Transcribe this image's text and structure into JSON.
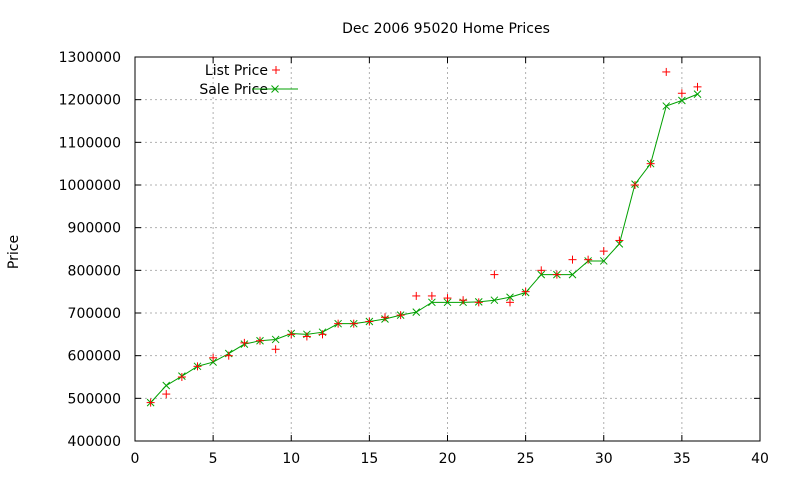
{
  "chart_data": {
    "type": "line",
    "title": "Dec 2006 95020 Home Prices",
    "xlabel": "",
    "ylabel": "Price",
    "xlim": [
      0,
      40
    ],
    "ylim": [
      400000,
      1300000
    ],
    "x_ticks": [
      0,
      5,
      10,
      15,
      20,
      25,
      30,
      35,
      40
    ],
    "y_ticks": [
      400000,
      500000,
      600000,
      700000,
      800000,
      900000,
      1000000,
      1100000,
      1200000,
      1300000
    ],
    "grid": true,
    "legend_position": "top-left",
    "x": [
      1,
      2,
      3,
      4,
      5,
      6,
      7,
      8,
      9,
      10,
      11,
      12,
      13,
      14,
      15,
      16,
      17,
      18,
      19,
      20,
      21,
      22,
      23,
      24,
      25,
      26,
      27,
      28,
      29,
      30,
      31,
      32,
      33,
      34,
      35,
      36
    ],
    "series": [
      {
        "name": "List Price",
        "style": "points",
        "color": "#ff0000",
        "values": [
          490000,
          510000,
          550000,
          575000,
          595000,
          600000,
          630000,
          635000,
          615000,
          650000,
          645000,
          650000,
          675000,
          675000,
          680000,
          690000,
          695000,
          740000,
          740000,
          735000,
          730000,
          725000,
          790000,
          725000,
          750000,
          800000,
          790000,
          825000,
          825000,
          845000,
          870000,
          1000000,
          1050000,
          1265000,
          1215000,
          1230000
        ]
      },
      {
        "name": "Sale Price",
        "style": "linespoints",
        "color": "#00a000",
        "values": [
          490000,
          530000,
          552000,
          575000,
          585000,
          605000,
          627000,
          635000,
          638000,
          652000,
          650000,
          655000,
          675000,
          675000,
          680000,
          686000,
          695000,
          702000,
          725000,
          725000,
          725000,
          726000,
          730000,
          737000,
          748000,
          790000,
          790000,
          790000,
          822000,
          822000,
          862000,
          1002000,
          1050000,
          1185000,
          1198000,
          1213000
        ]
      }
    ]
  }
}
